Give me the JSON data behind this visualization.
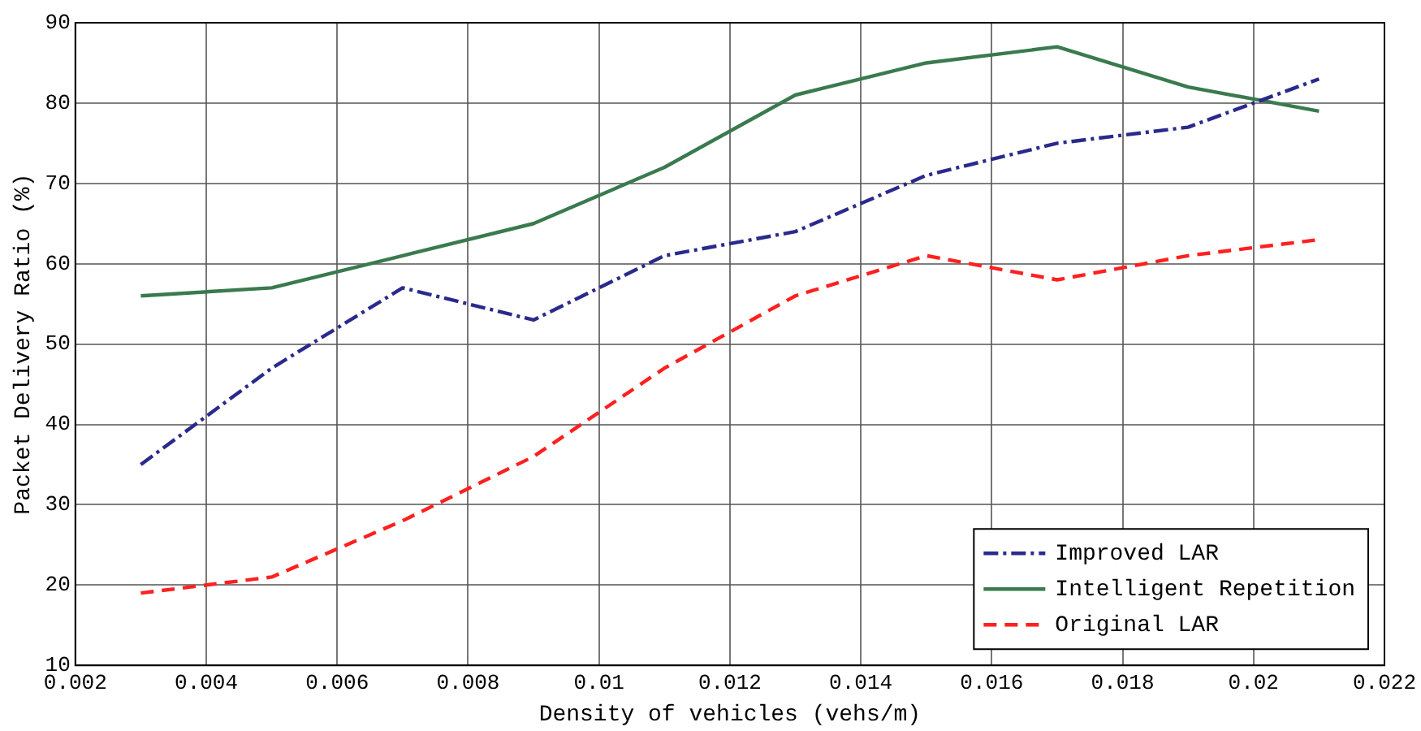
{
  "chart_data": {
    "type": "line",
    "xlabel": "Density of vehicles (vehs/m)",
    "ylabel": "Packet Delivery Ratio (%)",
    "x": [
      0.003,
      0.005,
      0.007,
      0.009,
      0.011,
      0.013,
      0.015,
      0.017,
      0.019,
      0.021
    ],
    "series": [
      {
        "name": "Improved LAR",
        "color": "#2a2a8c",
        "line_style": "dashdot",
        "values": [
          35,
          47,
          57,
          53,
          61,
          64,
          71,
          75,
          77,
          83
        ]
      },
      {
        "name": "Intelligent Repetition",
        "color": "#3a7a4e",
        "line_style": "solid",
        "values": [
          56,
          57,
          61,
          65,
          72,
          81,
          85,
          87,
          82,
          79
        ]
      },
      {
        "name": "Original LAR",
        "color": "#ff2020",
        "line_style": "dashed",
        "values": [
          19,
          21,
          28,
          36,
          47,
          56,
          61,
          58,
          61,
          63
        ]
      }
    ],
    "xlim": [
      0.002,
      0.022
    ],
    "xticks": [
      0.002,
      0.004,
      0.006,
      0.008,
      0.01,
      0.012,
      0.014,
      0.016,
      0.018,
      0.02,
      0.022
    ],
    "ylim": [
      10,
      90
    ],
    "yticks": [
      10,
      20,
      30,
      40,
      50,
      60,
      70,
      80,
      90
    ],
    "grid": true,
    "legend": "bottom right",
    "marker": "none"
  }
}
